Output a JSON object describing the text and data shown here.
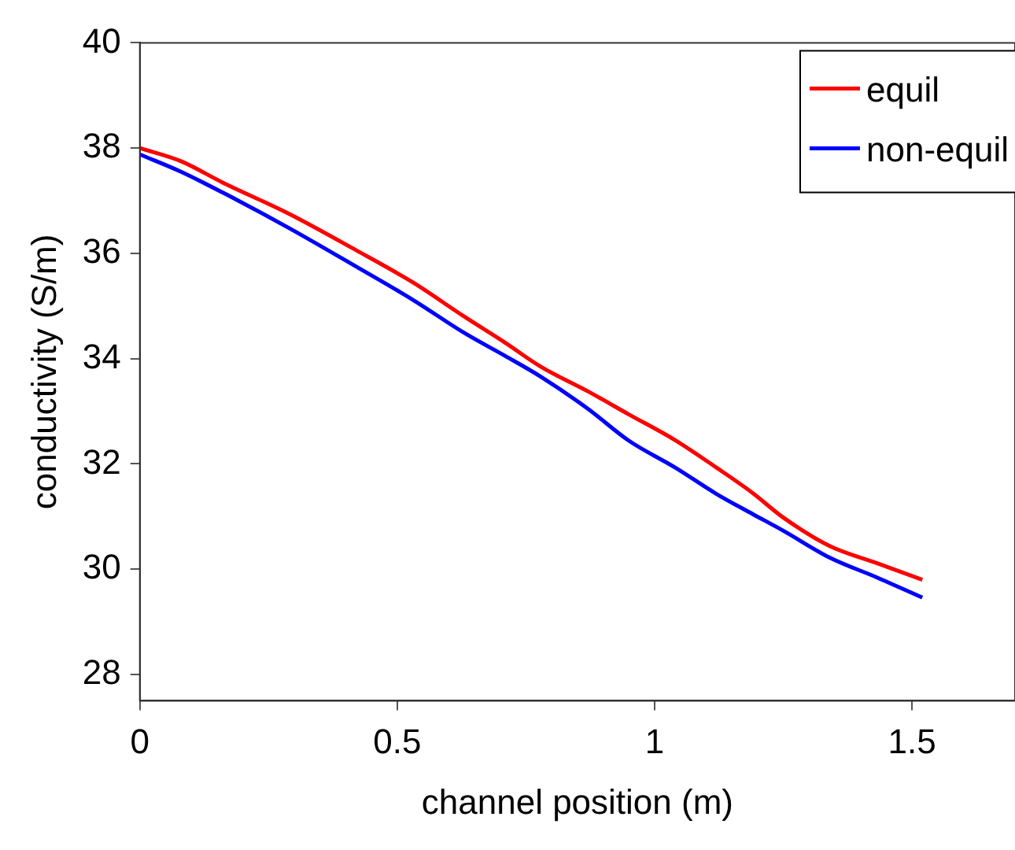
{
  "chart_data": {
    "type": "line",
    "xlabel": "channel position (m)",
    "ylabel": "conductivity (S/m)",
    "xlim": [
      0,
      1.7
    ],
    "xticks": [
      0,
      0.5,
      1,
      1.5
    ],
    "ylim": [
      27.5,
      40
    ],
    "yticks": [
      28,
      30,
      32,
      34,
      36,
      38,
      40
    ],
    "grid": false,
    "legend": "top right",
    "marker": "none",
    "line_style": "solid",
    "series": [
      {
        "name": "equil",
        "color": "#ff0000",
        "x": [
          0,
          0.08,
          0.16,
          0.29,
          0.42,
          0.53,
          0.63,
          0.71,
          0.78,
          0.87,
          0.95,
          1.04,
          1.12,
          1.19,
          1.25,
          1.34,
          1.43,
          1.52
        ],
        "values": [
          38.0,
          37.75,
          37.35,
          36.75,
          36.06,
          35.45,
          34.8,
          34.3,
          33.84,
          33.38,
          32.94,
          32.45,
          31.93,
          31.45,
          30.98,
          30.44,
          30.12,
          29.8
        ]
      },
      {
        "name": "non-equil",
        "color": "#0000ff",
        "x": [
          0,
          0.08,
          0.16,
          0.29,
          0.42,
          0.53,
          0.63,
          0.71,
          0.78,
          0.87,
          0.95,
          1.04,
          1.12,
          1.19,
          1.25,
          1.34,
          1.43,
          1.52
        ],
        "values": [
          37.88,
          37.55,
          37.16,
          36.48,
          35.75,
          35.12,
          34.49,
          34.05,
          33.65,
          33.05,
          32.44,
          31.93,
          31.43,
          31.05,
          30.73,
          30.22,
          29.85,
          29.46
        ]
      }
    ]
  }
}
